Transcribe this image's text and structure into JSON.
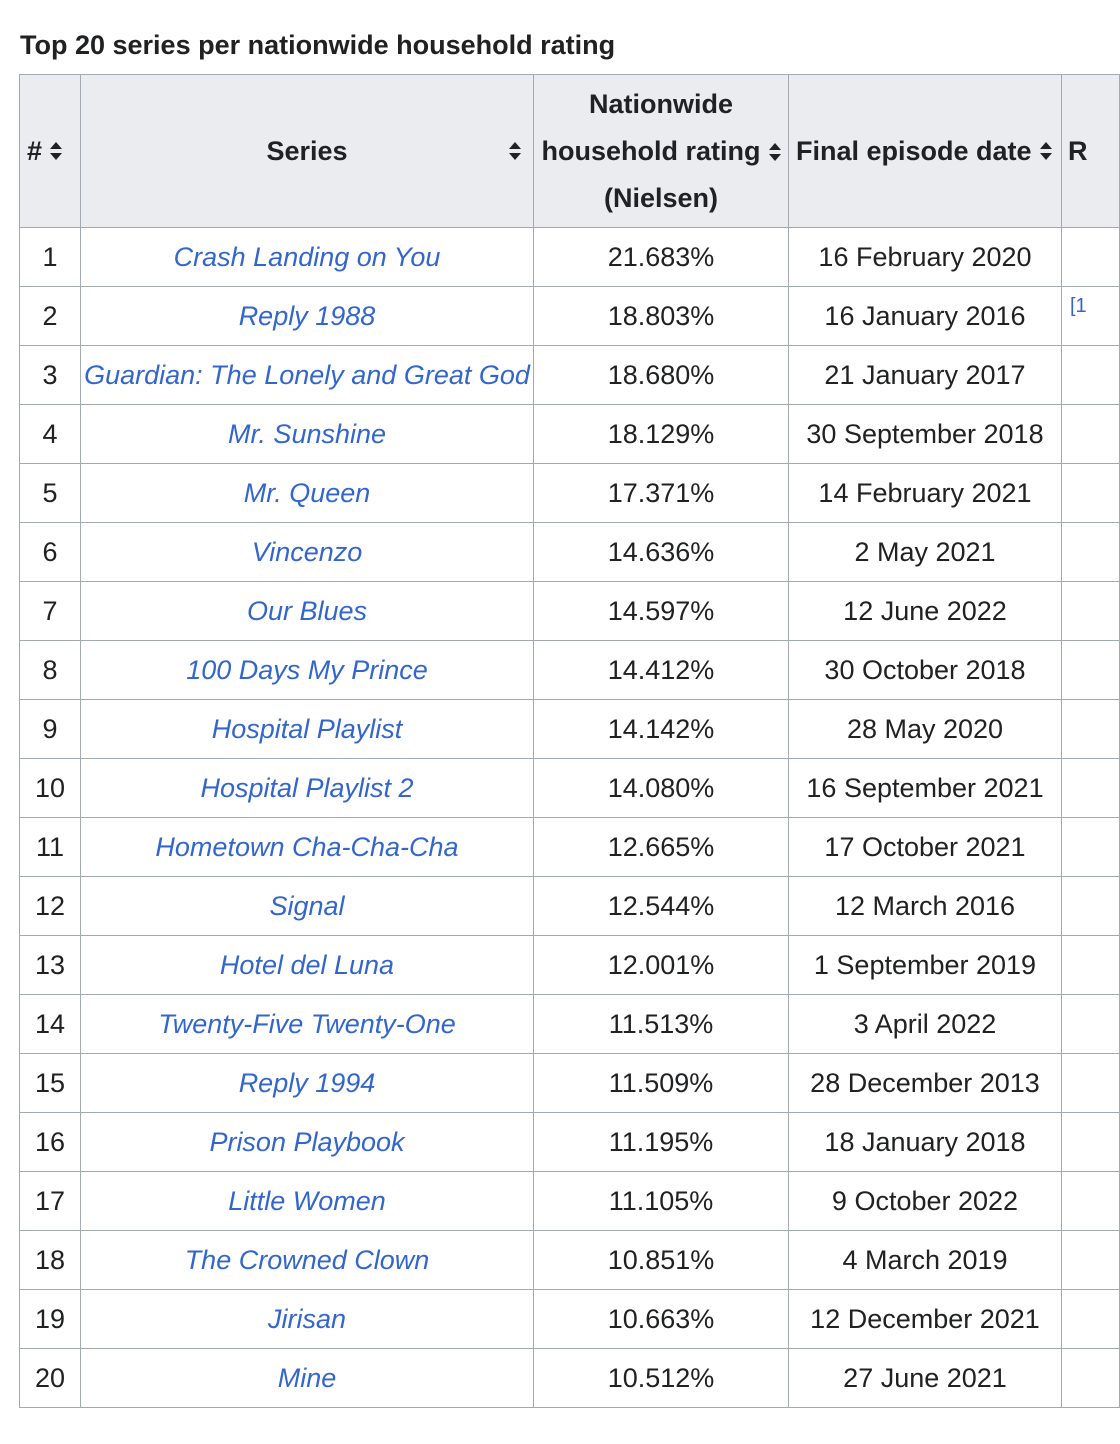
{
  "caption": "Top 20 series per nationwide household rating",
  "headers": {
    "rank": "#",
    "series": "Series",
    "rating_line1": "Nationwide",
    "rating_line2": "household rating",
    "rating_line3": "(Nielsen)",
    "date": "Final episode date",
    "ref": "R"
  },
  "icons": {
    "sort": "sort-icon"
  },
  "ref_marker": "[1",
  "rows": [
    {
      "rank": "1",
      "series": "Crash Landing on You",
      "rating": "21.683%",
      "date": "16 February 2020"
    },
    {
      "rank": "2",
      "series": "Reply 1988",
      "rating": "18.803%",
      "date": "16 January 2016"
    },
    {
      "rank": "3",
      "series": "Guardian: The Lonely and Great God",
      "rating": "18.680%",
      "date": "21 January 2017"
    },
    {
      "rank": "4",
      "series": "Mr. Sunshine",
      "rating": "18.129%",
      "date": "30 September 2018"
    },
    {
      "rank": "5",
      "series": "Mr. Queen",
      "rating": "17.371%",
      "date": "14 February 2021"
    },
    {
      "rank": "6",
      "series": "Vincenzo",
      "rating": "14.636%",
      "date": "2 May 2021"
    },
    {
      "rank": "7",
      "series": "Our Blues",
      "rating": "14.597%",
      "date": "12 June 2022"
    },
    {
      "rank": "8",
      "series": "100 Days My Prince",
      "rating": "14.412%",
      "date": "30 October 2018"
    },
    {
      "rank": "9",
      "series": "Hospital Playlist",
      "rating": "14.142%",
      "date": "28 May 2020"
    },
    {
      "rank": "10",
      "series": "Hospital Playlist 2",
      "rating": "14.080%",
      "date": "16 September 2021"
    },
    {
      "rank": "11",
      "series": "Hometown Cha-Cha-Cha",
      "rating": "12.665%",
      "date": "17 October 2021"
    },
    {
      "rank": "12",
      "series": "Signal",
      "rating": "12.544%",
      "date": "12 March 2016"
    },
    {
      "rank": "13",
      "series": "Hotel del Luna",
      "rating": "12.001%",
      "date": "1 September 2019"
    },
    {
      "rank": "14",
      "series": "Twenty-Five Twenty-One",
      "rating": "11.513%",
      "date": "3 April 2022"
    },
    {
      "rank": "15",
      "series": "Reply 1994",
      "rating": "11.509%",
      "date": "28 December 2013"
    },
    {
      "rank": "16",
      "series": "Prison Playbook",
      "rating": "11.195%",
      "date": "18 January 2018"
    },
    {
      "rank": "17",
      "series": "Little Women",
      "rating": "11.105%",
      "date": "9 October 2022"
    },
    {
      "rank": "18",
      "series": "The Crowned Clown",
      "rating": "10.851%",
      "date": "4 March 2019"
    },
    {
      "rank": "19",
      "series": "Jirisan",
      "rating": "10.663%",
      "date": "12 December 2021"
    },
    {
      "rank": "20",
      "series": "Mine",
      "rating": "10.512%",
      "date": "27 June 2021"
    }
  ]
}
